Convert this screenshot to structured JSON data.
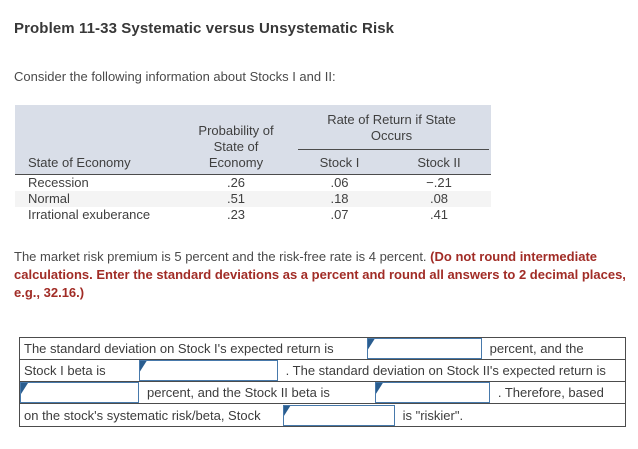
{
  "title": "Problem 11-33 Systematic versus Unsystematic Risk",
  "intro": "Consider the following information about Stocks I and II:",
  "table": {
    "group_header": "Rate of Return if State Occurs",
    "col_state": "State of Economy",
    "col_prob_line1": "Probability of",
    "col_prob_line2": "State of",
    "col_prob_line3": "Economy",
    "col_stock1": "Stock I",
    "col_stock2": "Stock II",
    "rows": [
      {
        "state": "Recession",
        "prob": ".26",
        "stock1": ".06",
        "stock2": "−.21"
      },
      {
        "state": "Normal",
        "prob": ".51",
        "stock1": ".18",
        "stock2": ".08"
      },
      {
        "state": "Irrational exuberance",
        "prob": ".23",
        "stock1": ".07",
        "stock2": ".41"
      }
    ]
  },
  "paragraph": {
    "normal": "The market risk premium is 5 percent and the risk-free rate is 4 percent. ",
    "emphasis": "(Do not round intermediate calculations. Enter the standard deviations as a percent and round all answers to 2 decimal places, e.g., 32.16.)"
  },
  "answer": {
    "row1": {
      "text1": "The standard deviation on Stock I's expected return is",
      "text2": "percent, and the",
      "input_value": ""
    },
    "row2": {
      "text1": "Stock I beta is",
      "text2": ". The standard deviation on Stock II's expected return is",
      "input_value": ""
    },
    "row3": {
      "text1": "percent, and the Stock II beta is",
      "text2": ". Therefore, based",
      "input1_value": "",
      "input2_value": ""
    },
    "row4": {
      "text1": "on the stock's systematic risk/beta, Stock",
      "text2": "is \"riskier\".",
      "input_value": ""
    }
  },
  "colors": {
    "header_bg": "#d9dee8",
    "table_border": "#4c4c4c",
    "alt_row_bg": "#f4f4f4",
    "emphasis_red": "#a12c26",
    "input_border_blue": "#4779ab",
    "input_marker_blue": "#2a5d8f"
  }
}
